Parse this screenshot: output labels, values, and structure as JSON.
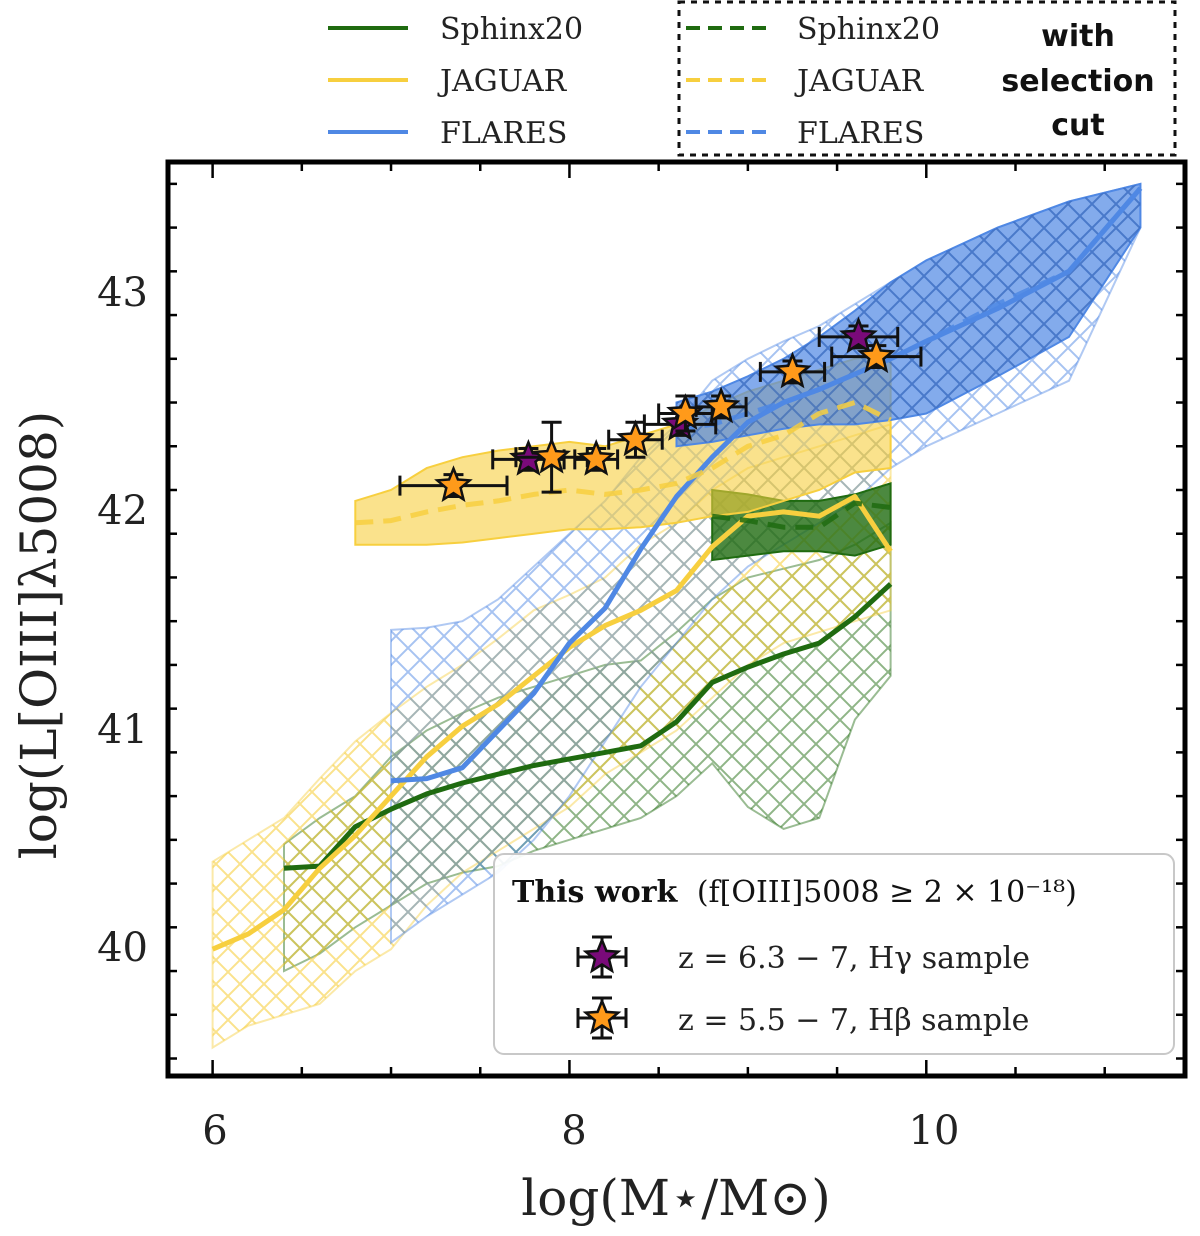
{
  "chart_data": {
    "type": "line",
    "xlabel": "log(M⋆/M⊙)",
    "ylabel": "log(L[OIII]λ5008)",
    "xlim": [
      5.75,
      11.45
    ],
    "ylim": [
      39.42,
      43.6
    ],
    "xticks": [
      6,
      8,
      10
    ],
    "yticks": [
      40,
      41,
      42,
      43
    ],
    "xtick_labels": [
      "6",
      "8",
      "10"
    ],
    "ytick_labels": [
      "40",
      "41",
      "42",
      "43"
    ],
    "colors": {
      "sphinx": "#1f6b10",
      "jaguar": "#f7cf3f",
      "flares": "#4f88e4",
      "purple": "#7a0a7a",
      "orange": "#ff9a1a"
    },
    "series": [
      {
        "name": "Sphinx20",
        "style": "solid",
        "color": "#1f6b10",
        "x": [
          6.4,
          6.6,
          6.8,
          7.0,
          7.2,
          7.4,
          7.6,
          7.8,
          8.0,
          8.2,
          8.4,
          8.6,
          8.8,
          9.0,
          9.2,
          9.4,
          9.6,
          9.8
        ],
        "y": [
          40.37,
          40.38,
          40.56,
          40.64,
          40.71,
          40.76,
          40.8,
          40.84,
          40.87,
          40.9,
          40.93,
          41.04,
          41.22,
          41.29,
          41.35,
          41.4,
          41.52,
          41.67
        ],
        "band_low": [
          39.9,
          39.98,
          40.1,
          40.2,
          40.3,
          40.35,
          40.38,
          40.45,
          40.5,
          40.55,
          40.6,
          40.7,
          40.85,
          40.65,
          40.55,
          40.6,
          41.05,
          41.25
        ],
        "band_high": [
          40.48,
          40.6,
          40.7,
          40.88,
          41.0,
          41.08,
          41.15,
          41.2,
          41.25,
          41.3,
          41.32,
          41.45,
          41.6,
          41.7,
          41.74,
          41.78,
          41.85,
          41.95
        ]
      },
      {
        "name": "JAGUAR",
        "style": "solid",
        "color": "#f7cf3f",
        "x": [
          6.0,
          6.2,
          6.4,
          6.6,
          6.8,
          7.0,
          7.2,
          7.4,
          7.6,
          7.8,
          8.0,
          8.2,
          8.4,
          8.6,
          8.8,
          9.0,
          9.2,
          9.4,
          9.6,
          9.8
        ],
        "y": [
          40.0,
          40.07,
          40.18,
          40.37,
          40.52,
          40.7,
          40.88,
          41.02,
          41.12,
          41.25,
          41.38,
          41.48,
          41.55,
          41.64,
          41.84,
          41.98,
          42.0,
          41.98,
          42.07,
          41.82
        ],
        "band_low": [
          39.55,
          39.65,
          39.7,
          39.75,
          39.9,
          40.0,
          40.2,
          40.35,
          40.45,
          40.55,
          40.65,
          40.8,
          40.9,
          41.0,
          41.15,
          41.3,
          41.4,
          41.45,
          41.5,
          41.55
        ],
        "band_high": [
          40.4,
          40.5,
          40.6,
          40.78,
          40.95,
          41.08,
          41.2,
          41.3,
          41.42,
          41.55,
          41.62,
          41.7,
          41.85,
          41.95,
          42.1,
          42.2,
          42.25,
          42.3,
          42.35,
          42.4
        ]
      },
      {
        "name": "FLARES",
        "style": "solid",
        "color": "#4f88e4",
        "x": [
          7.0,
          7.2,
          7.4,
          7.6,
          7.8,
          8.0,
          8.2,
          8.4,
          8.6,
          8.8,
          9.0,
          9.2,
          9.4,
          9.6,
          9.8,
          10.0,
          10.4,
          10.8,
          11.2
        ],
        "y": [
          40.77,
          40.78,
          40.83,
          41.0,
          41.17,
          41.4,
          41.56,
          41.83,
          42.07,
          42.25,
          42.41,
          42.5,
          42.56,
          42.63,
          42.7,
          42.78,
          42.93,
          43.1,
          43.48
        ],
        "band_low": [
          40.03,
          40.15,
          40.25,
          40.35,
          40.5,
          40.7,
          40.95,
          41.2,
          41.4,
          41.6,
          41.75,
          41.85,
          41.95,
          42.05,
          42.2,
          42.3,
          42.45,
          42.6,
          43.3
        ],
        "band_high": [
          41.46,
          41.47,
          41.5,
          41.6,
          41.75,
          41.9,
          42.05,
          42.25,
          42.4,
          42.6,
          42.7,
          42.78,
          42.85,
          42.95,
          43.05,
          43.15,
          43.3,
          43.42,
          43.5
        ]
      },
      {
        "name": "Sphinx20 (with selection cut)",
        "style": "dashed",
        "color": "#1f6b10",
        "x": [
          8.8,
          9.0,
          9.2,
          9.4,
          9.6,
          9.8
        ],
        "y": [
          41.98,
          41.96,
          41.93,
          41.93,
          42.04,
          42.02
        ],
        "band_low": [
          41.78,
          41.8,
          41.82,
          41.82,
          41.8,
          41.85
        ],
        "band_high": [
          42.1,
          42.08,
          42.05,
          42.05,
          42.08,
          42.13
        ]
      },
      {
        "name": "JAGUAR (with selection cut)",
        "style": "dashed",
        "color": "#f7cf3f",
        "x": [
          6.8,
          7.0,
          7.2,
          7.4,
          7.6,
          7.8,
          8.0,
          8.2,
          8.4,
          8.6,
          8.8,
          9.0,
          9.2,
          9.4,
          9.6,
          9.8
        ],
        "y": [
          41.95,
          41.96,
          42.0,
          42.03,
          42.05,
          42.08,
          42.1,
          42.08,
          42.1,
          42.13,
          42.2,
          42.3,
          42.35,
          42.45,
          42.5,
          42.42
        ],
        "band_low": [
          41.85,
          41.85,
          41.85,
          41.86,
          41.88,
          41.9,
          41.92,
          41.92,
          41.93,
          41.95,
          41.98,
          42.0,
          42.05,
          42.1,
          42.18,
          42.2
        ],
        "band_high": [
          42.05,
          42.1,
          42.2,
          42.25,
          42.28,
          42.3,
          42.32,
          42.3,
          42.35,
          42.4,
          42.48,
          42.55,
          42.6,
          42.65,
          42.7,
          42.72
        ]
      },
      {
        "name": "FLARES (with selection cut)",
        "style": "dashed",
        "color": "#4f88e4",
        "x": [
          8.6,
          8.8,
          9.0,
          9.2,
          9.4,
          9.6,
          9.8,
          10.0,
          10.4,
          10.8,
          11.2
        ],
        "y": [
          42.38,
          42.4,
          42.45,
          42.5,
          42.56,
          42.63,
          42.7,
          42.78,
          42.95,
          43.1,
          43.48
        ],
        "band_low": [
          42.3,
          42.32,
          42.35,
          42.38,
          42.4,
          42.4,
          42.42,
          42.45,
          42.62,
          42.8,
          43.3
        ],
        "band_high": [
          42.5,
          42.55,
          42.62,
          42.7,
          42.8,
          42.92,
          43.05,
          43.15,
          43.3,
          43.42,
          43.5
        ]
      }
    ],
    "points": [
      {
        "sample": "z = 6.3 − 7, Hγ sample",
        "color": "#7a0a7a",
        "x": 7.77,
        "y": 42.24,
        "xerr": 0.2,
        "yerr": 0.05
      },
      {
        "sample": "z = 6.3 − 7, Hγ sample",
        "color": "#7a0a7a",
        "x": 8.62,
        "y": 42.4,
        "xerr": 0.2,
        "yerr": 0.05
      },
      {
        "sample": "z = 6.3 − 7, Hγ sample",
        "color": "#7a0a7a",
        "x": 9.62,
        "y": 42.8,
        "xerr": 0.22,
        "yerr": 0.05
      },
      {
        "sample": "z = 5.5 − 7, Hβ sample",
        "color": "#ff9a1a",
        "x": 7.35,
        "y": 42.12,
        "xerr": 0.3,
        "yerr": 0.05
      },
      {
        "sample": "z = 5.5 − 7, Hβ sample",
        "color": "#ff9a1a",
        "x": 7.9,
        "y": 42.25,
        "xerr": 0.2,
        "yerr": 0.16
      },
      {
        "sample": "z = 5.5 − 7, Hβ sample",
        "color": "#ff9a1a",
        "x": 8.15,
        "y": 42.24,
        "xerr": 0.12,
        "yerr": 0.05
      },
      {
        "sample": "z = 5.5 − 7, Hβ sample",
        "color": "#ff9a1a",
        "x": 8.37,
        "y": 42.33,
        "xerr": 0.15,
        "yerr": 0.08
      },
      {
        "sample": "z = 5.5 − 7, Hβ sample",
        "color": "#ff9a1a",
        "x": 8.65,
        "y": 42.45,
        "xerr": 0.15,
        "yerr": 0.08
      },
      {
        "sample": "z = 5.5 − 7, Hβ sample",
        "color": "#ff9a1a",
        "x": 8.85,
        "y": 42.48,
        "xerr": 0.14,
        "yerr": 0.05
      },
      {
        "sample": "z = 5.5 − 7, Hβ sample",
        "color": "#ff9a1a",
        "x": 9.25,
        "y": 42.64,
        "xerr": 0.18,
        "yerr": 0.05
      },
      {
        "sample": "z = 5.5 − 7, Hβ sample",
        "color": "#ff9a1a",
        "x": 9.72,
        "y": 42.71,
        "xerr": 0.25,
        "yerr": 0.05
      }
    ],
    "legend_top": {
      "solid": [
        "Sphinx20",
        "JAGUAR",
        "FLARES"
      ],
      "dashed": [
        "Sphinx20",
        "JAGUAR",
        "FLARES"
      ],
      "note": [
        "with",
        "selection",
        "cut"
      ]
    },
    "legend_inner": {
      "title_bold": "This work",
      "title_rest": "(f[OIII]5008 ≥ 2 × 10⁻¹⁸)",
      "entries": [
        "z = 6.3 − 7, Hγ sample",
        "z = 5.5 − 7, Hβ sample"
      ]
    }
  }
}
